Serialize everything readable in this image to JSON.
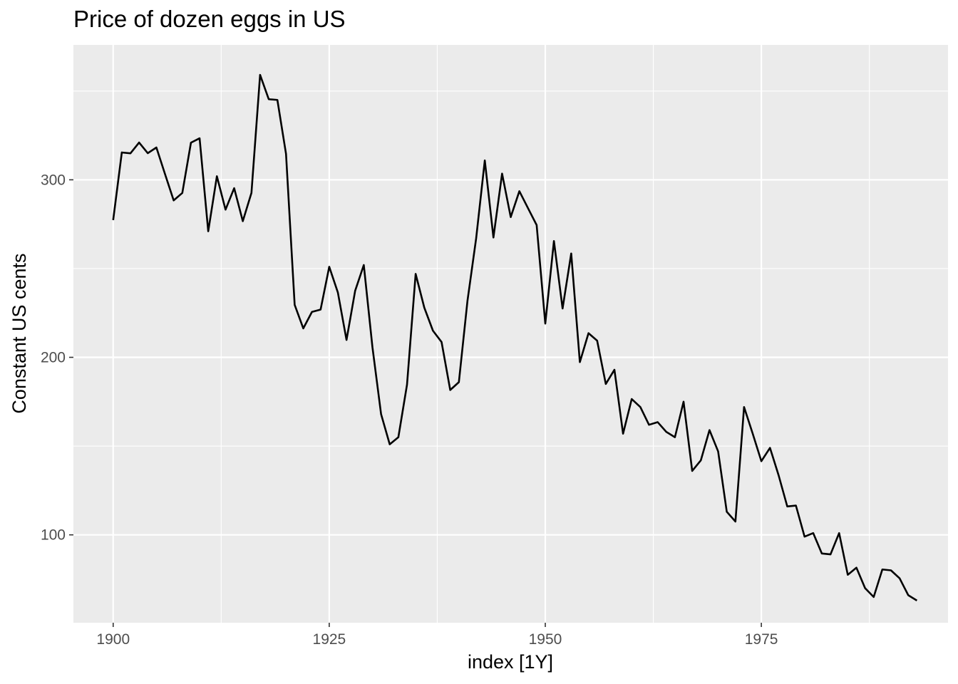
{
  "chart_data": {
    "type": "line",
    "title": "Price of dozen eggs in US",
    "xlabel": "index [1Y]",
    "ylabel": "Constant US cents",
    "xlim": [
      1895.4,
      1996.6
    ],
    "ylim": [
      50.5,
      376
    ],
    "x_ticks": [
      1900,
      1925,
      1950,
      1975
    ],
    "x_minor_ticks": [
      1912.5,
      1937.5,
      1962.5,
      1987.5
    ],
    "y_ticks": [
      100,
      200,
      300
    ],
    "y_minor_ticks": [
      50,
      150,
      250,
      350
    ],
    "grid": true,
    "panel_background": "#ebebeb",
    "grid_color": "#ffffff",
    "line_color": "#000000",
    "series": [
      {
        "x": [
          1900,
          1901,
          1902,
          1903,
          1904,
          1905,
          1906,
          1907,
          1908,
          1909,
          1910,
          1911,
          1912,
          1913,
          1914,
          1915,
          1916,
          1917,
          1918,
          1919,
          1920,
          1921,
          1922,
          1923,
          1924,
          1925,
          1926,
          1927,
          1928,
          1929,
          1930,
          1931,
          1932,
          1933,
          1934,
          1935,
          1936,
          1937,
          1938,
          1939,
          1940,
          1941,
          1942,
          1943,
          1944,
          1945,
          1946,
          1947,
          1948,
          1949,
          1950,
          1951,
          1952,
          1953,
          1954,
          1955,
          1956,
          1957,
          1958,
          1959,
          1960,
          1961,
          1962,
          1963,
          1964,
          1965,
          1966,
          1967,
          1968,
          1969,
          1970,
          1971,
          1972,
          1973,
          1974,
          1975,
          1976,
          1977,
          1978,
          1979,
          1980,
          1981,
          1982,
          1983,
          1984,
          1985,
          1986,
          1987,
          1988,
          1989,
          1990,
          1991,
          1992,
          1993
        ],
        "values": [
          277.3,
          315.4,
          314.9,
          321.0,
          315.0,
          318.2,
          303.2,
          288.4,
          292.6,
          320.9,
          323.4,
          271.0,
          302.0,
          283.2,
          295.3,
          276.7,
          292.6,
          359.1,
          345.4,
          345.0,
          314.6,
          229.6,
          216.3,
          225.6,
          226.9,
          251.0,
          236.5,
          209.8,
          237.5,
          252.0,
          205.7,
          168.0,
          151.0,
          155.0,
          184.6,
          247.0,
          228.0,
          215.0,
          208.6,
          181.6,
          186.0,
          232.0,
          267.0,
          310.9,
          267.5,
          303.5,
          279.0,
          293.6,
          284.0,
          274.5,
          219.0,
          265.5,
          227.5,
          258.5,
          197.3,
          213.6,
          209.4,
          185.0,
          193.0,
          157.0,
          176.5,
          172.0,
          162.0,
          163.5,
          158.0,
          155.0,
          175.0,
          136.0,
          142.0,
          159.0,
          147.0,
          113.0,
          107.5,
          172.0,
          157.0,
          141.5,
          149.0,
          133.5,
          116.0,
          116.5,
          99.0,
          101.0,
          89.5,
          89.0,
          101.0,
          77.5,
          81.5,
          70.0,
          65.0,
          80.5,
          80.0,
          75.5,
          66.0,
          63.0
        ]
      }
    ]
  }
}
